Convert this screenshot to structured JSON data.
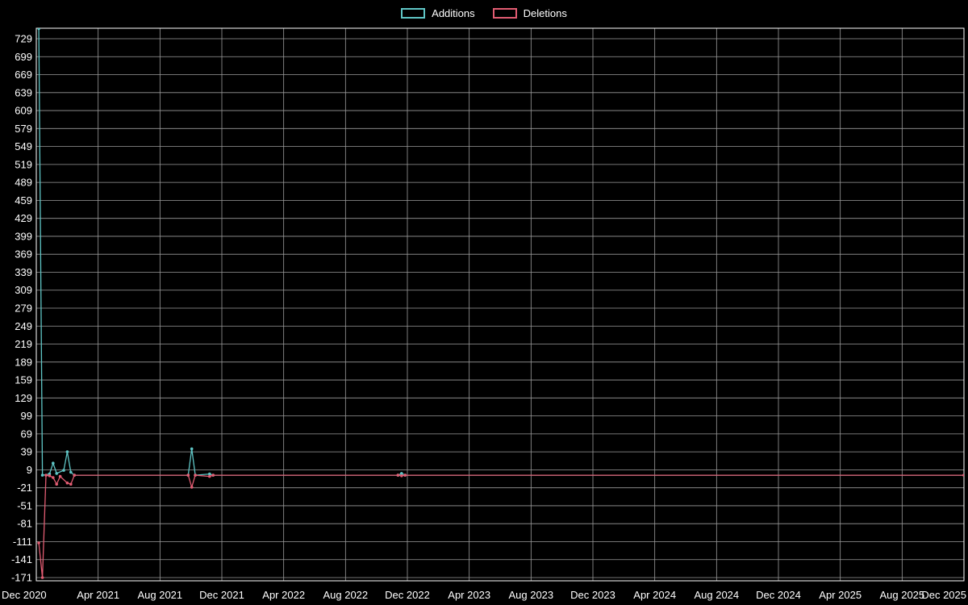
{
  "colors": {
    "background": "#000000",
    "grid": "#9b9b9b",
    "axis_border": "#ffffff",
    "text": "#ffffff",
    "additions": "#5fc6c6",
    "deletions": "#e25c72"
  },
  "legend": {
    "additions_label": "Additions",
    "deletions_label": "Deletions"
  },
  "chart_data": {
    "type": "line",
    "title": "",
    "xlabel": "",
    "ylabel": "",
    "grid": true,
    "legend_position": "top-center",
    "ylim": [
      -171,
      729
    ],
    "y_tick_step": 30,
    "y_ticks": [
      729,
      699,
      669,
      639,
      609,
      579,
      549,
      519,
      489,
      459,
      429,
      399,
      369,
      339,
      309,
      279,
      249,
      219,
      189,
      159,
      129,
      99,
      69,
      39,
      9,
      -21,
      -51,
      -81,
      -111,
      -141,
      -171
    ],
    "x_ticks": [
      "Dec 2020",
      "Apr 2021",
      "Aug 2021",
      "Dec 2021",
      "Apr 2022",
      "Aug 2022",
      "Dec 2022",
      "Apr 2023",
      "Aug 2023",
      "Dec 2023",
      "Apr 2024",
      "Aug 2024",
      "Dec 2024",
      "Apr 2025",
      "Aug 2025",
      "Dec 2025"
    ],
    "x_range": [
      "2020-12-01",
      "2025-12-01"
    ],
    "series": [
      {
        "name": "Additions",
        "color_key": "additions",
        "points": [
          [
            "2020-12-06",
            746
          ],
          [
            "2020-12-13",
            0
          ],
          [
            "2020-12-27",
            2
          ],
          [
            "2021-01-03",
            20
          ],
          [
            "2021-01-10",
            3
          ],
          [
            "2021-01-24",
            8
          ],
          [
            "2021-01-31",
            39
          ],
          [
            "2021-02-07",
            5
          ],
          [
            "2021-02-14",
            0
          ],
          [
            "2021-09-26",
            0
          ],
          [
            "2021-10-03",
            44
          ],
          [
            "2021-10-10",
            0
          ],
          [
            "2021-11-07",
            2
          ],
          [
            "2021-11-14",
            0
          ],
          [
            "2022-11-13",
            0
          ],
          [
            "2022-11-20",
            3
          ],
          [
            "2022-11-27",
            0
          ],
          [
            "2025-12-01",
            0
          ]
        ]
      },
      {
        "name": "Deletions",
        "color_key": "deletions",
        "points": [
          [
            "2020-12-06",
            -113
          ],
          [
            "2020-12-13",
            -171
          ],
          [
            "2020-12-20",
            0
          ],
          [
            "2020-12-27",
            -1
          ],
          [
            "2021-01-03",
            -4
          ],
          [
            "2021-01-10",
            -15
          ],
          [
            "2021-01-17",
            -2
          ],
          [
            "2021-01-31",
            -13
          ],
          [
            "2021-02-07",
            -15
          ],
          [
            "2021-02-14",
            0
          ],
          [
            "2021-09-26",
            0
          ],
          [
            "2021-10-03",
            -20
          ],
          [
            "2021-10-10",
            0
          ],
          [
            "2021-11-07",
            -2
          ],
          [
            "2021-11-14",
            0
          ],
          [
            "2022-11-13",
            0
          ],
          [
            "2022-11-20",
            -1
          ],
          [
            "2022-11-27",
            0
          ],
          [
            "2025-12-01",
            0
          ]
        ]
      }
    ]
  }
}
